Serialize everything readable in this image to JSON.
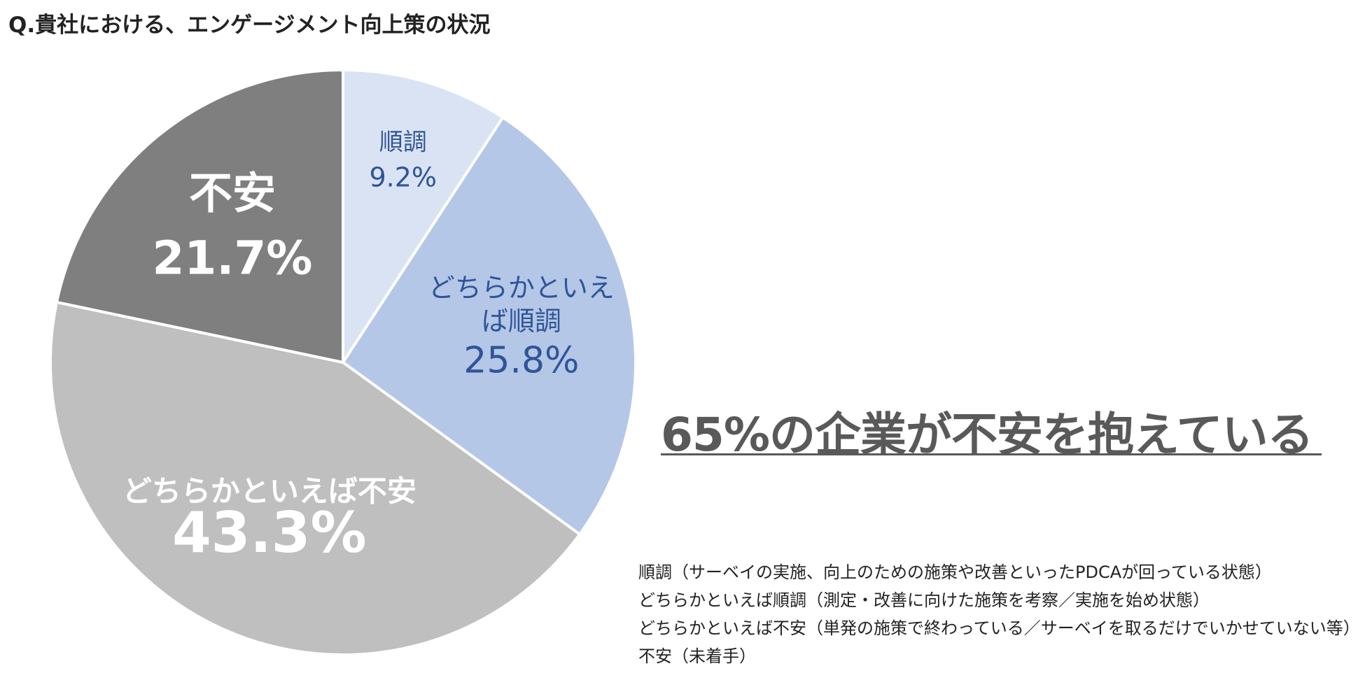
{
  "title": "Q.貴社における、エンゲージメント向上策の状況",
  "headline": "65%の企業が不安を抱えている",
  "legend_notes": [
    "順調（サーベイの実施、向上のための施策や改善といったPDCAが回っている状態）",
    "どちらかといえば順調（測定・改善に向けた施策を考察／実施を始め状態）",
    "どちらかといえば不安（単発の施策で終わっている／サーベイを取るだけでいかせていない等）",
    "不安（未着手）"
  ],
  "chart_data": {
    "type": "pie",
    "start": "top",
    "direction": "clockwise",
    "slices": [
      {
        "label": "順調",
        "value": 9.2,
        "display": "9.2%",
        "color": "#dae3f3",
        "text_color": "#2f5597"
      },
      {
        "label": "どちらかといえば順調",
        "value": 25.8,
        "display": "25.8%",
        "color": "#b4c7e7",
        "text_color": "#2f5597"
      },
      {
        "label": "どちらかといえば不安",
        "value": 43.3,
        "display": "43.3%",
        "color": "#bfbfbf",
        "text_color": "#ffffff"
      },
      {
        "label": "不安",
        "value": 21.7,
        "display": "21.7%",
        "color": "#7f7f7f",
        "text_color": "#ffffff"
      }
    ]
  }
}
